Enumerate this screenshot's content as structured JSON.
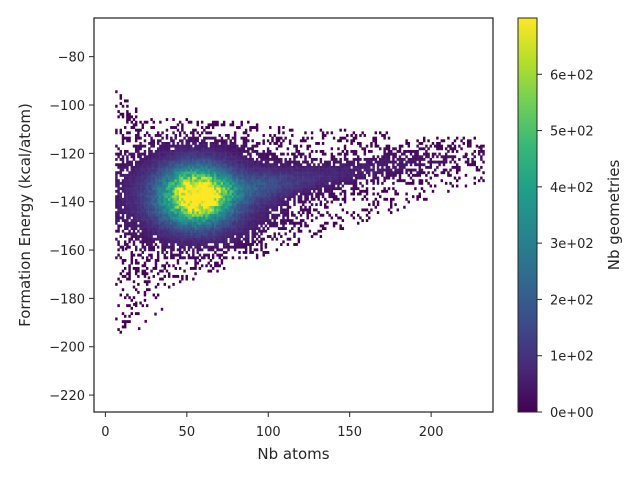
{
  "chart_data": [
    {
      "type": "heatmap",
      "title": "",
      "xlabel": "Nb atoms",
      "ylabel": "Formation Energy (kcal/atom)",
      "xlim": [
        -7,
        238
      ],
      "ylim": [
        -227,
        -64
      ],
      "x_ticks": [
        {
          "value": 0,
          "label": "0"
        },
        {
          "value": 50,
          "label": "50"
        },
        {
          "value": 100,
          "label": "100"
        },
        {
          "value": 150,
          "label": "150"
        },
        {
          "value": 200,
          "label": "200"
        }
      ],
      "y_ticks": [
        {
          "value": -80,
          "label": "−80"
        },
        {
          "value": -100,
          "label": "−100"
        },
        {
          "value": -120,
          "label": "−120"
        },
        {
          "value": -140,
          "label": "−140"
        },
        {
          "value": -160,
          "label": "−160"
        },
        {
          "value": -180,
          "label": "−180"
        },
        {
          "value": -200,
          "label": "−200"
        },
        {
          "value": -220,
          "label": "−220"
        }
      ],
      "density_regions": [
        {
          "description": "main cluster peak",
          "x_center": 55,
          "y_center": -138,
          "count_max": 690
        },
        {
          "description": "high-energy tail",
          "x_range": [
            120,
            230
          ],
          "y_range": [
            -150,
            -118
          ]
        },
        {
          "description": "sparse low tail",
          "x_range": [
            18,
            40
          ],
          "y_range": [
            -195,
            -165
          ]
        }
      ],
      "grid": false,
      "colormap": "viridis"
    },
    {
      "type": "colorbar",
      "label": "Nb geometries",
      "range": [
        0,
        700
      ],
      "ticks": [
        {
          "value": 0,
          "label": "0e+00"
        },
        {
          "value": 100,
          "label": "1e+02"
        },
        {
          "value": 200,
          "label": "2e+02"
        },
        {
          "value": 300,
          "label": "3e+02"
        },
        {
          "value": 400,
          "label": "4e+02"
        },
        {
          "value": 500,
          "label": "5e+02"
        },
        {
          "value": 600,
          "label": "6e+02"
        }
      ],
      "colormap": "viridis"
    }
  ]
}
